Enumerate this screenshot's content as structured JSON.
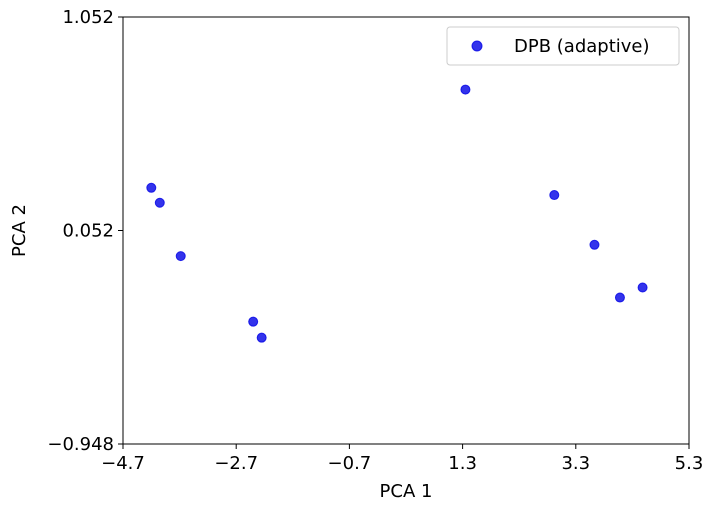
{
  "chart_data": {
    "type": "scatter",
    "title": "",
    "xlabel": "PCA 1",
    "ylabel": "PCA 2",
    "xlim": [
      -4.7,
      5.3
    ],
    "ylim": [
      -0.948,
      1.052
    ],
    "xticks": [
      -4.7,
      -2.7,
      -0.7,
      1.3,
      3.3,
      5.3
    ],
    "xtick_labels": [
      "−4.7",
      "−2.7",
      "−0.7",
      "1.3",
      "3.3",
      "5.3"
    ],
    "yticks": [
      -0.948,
      0.052,
      1.052
    ],
    "ytick_labels": [
      "−0.948",
      "0.052",
      "1.052"
    ],
    "grid": false,
    "legend_position": "top-right",
    "series": [
      {
        "name": "DPB (adaptive)",
        "color": "#0000e6",
        "x": [
          -4.2,
          -4.05,
          -3.68,
          -2.4,
          -2.25,
          1.35,
          2.92,
          3.63,
          4.08,
          4.48
        ],
        "y": [
          0.252,
          0.182,
          -0.068,
          -0.375,
          -0.45,
          0.712,
          0.218,
          -0.015,
          -0.262,
          -0.215
        ]
      }
    ]
  }
}
